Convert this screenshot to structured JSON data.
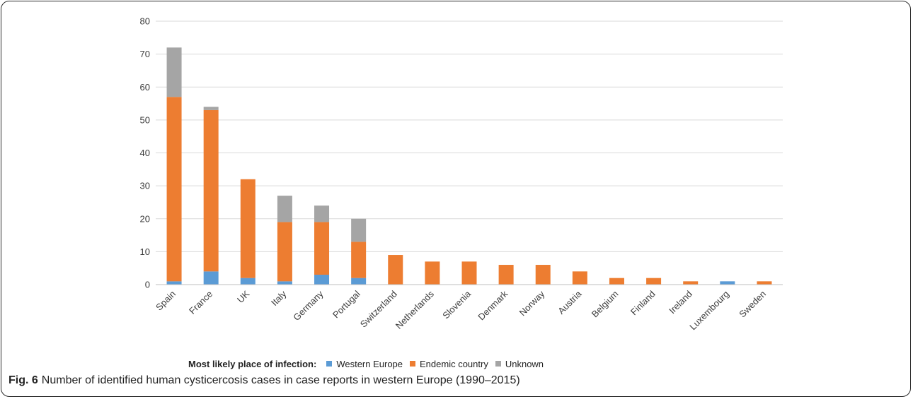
{
  "chart_data": {
    "type": "bar",
    "stacked": true,
    "categories": [
      "Spain",
      "France",
      "UK",
      "Italy",
      "Germany",
      "Portugal",
      "Switzerland",
      "Netherlands",
      "Slovenia",
      "Denmark",
      "Norway",
      "Austria",
      "Belgium",
      "Finland",
      "Ireland",
      "Luxembourg",
      "Sweden"
    ],
    "series": [
      {
        "name": "Western Europe",
        "color": "#5b9bd5",
        "values": [
          1,
          4,
          2,
          1,
          3,
          2,
          0,
          0,
          0,
          0,
          0,
          0,
          0,
          0,
          0,
          1,
          0
        ]
      },
      {
        "name": "Endemic country",
        "color": "#ed7d31",
        "values": [
          56,
          49,
          30,
          18,
          16,
          11,
          9,
          7,
          7,
          6,
          6,
          4,
          2,
          2,
          1,
          0,
          1
        ]
      },
      {
        "name": "Unknown",
        "color": "#a5a5a5",
        "values": [
          15,
          1,
          0,
          8,
          5,
          7,
          0,
          0,
          0,
          0,
          0,
          0,
          0,
          0,
          0,
          0,
          0
        ]
      }
    ],
    "ylim": [
      0,
      80
    ],
    "yticks": [
      0,
      10,
      20,
      30,
      40,
      50,
      60,
      70,
      80
    ],
    "grid": true,
    "legend": {
      "title": "Most likely place of infection:",
      "position": "bottom"
    },
    "xlabel": "",
    "ylabel": ""
  },
  "caption": {
    "label": "Fig. 6",
    "text": "Number of identified human cysticercosis cases in case reports in western Europe (1990–2015)"
  }
}
